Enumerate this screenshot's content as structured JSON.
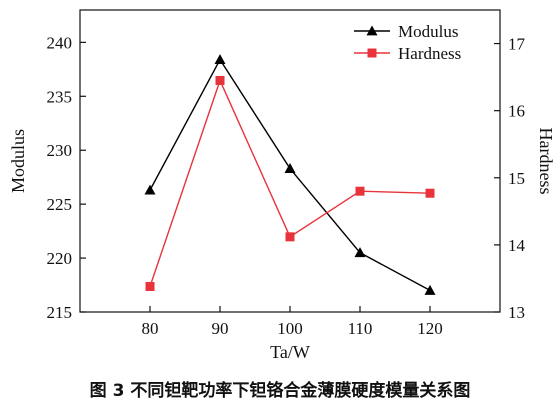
{
  "caption": "图 3  不同钽靶功率下钽铬合金薄膜硬度模量关系图",
  "chart_data": {
    "type": "line",
    "x": [
      80,
      90,
      100,
      110,
      120
    ],
    "xlabel": "Ta/W",
    "ylabel_left": "Modulus",
    "ylabel_right": "Hardness",
    "xlim": [
      70,
      130
    ],
    "ylim_left": [
      215,
      243
    ],
    "ylim_right": [
      13,
      17.5
    ],
    "x_ticks": [
      "80",
      "90",
      "100",
      "110",
      "120"
    ],
    "y_left_ticks": [
      "215",
      "220",
      "225",
      "230",
      "235",
      "240"
    ],
    "y_right_ticks": [
      "13",
      "14",
      "15",
      "16",
      "17"
    ],
    "legend_position": "top-right",
    "grid": false,
    "series": [
      {
        "name": "Modulus",
        "axis": "left",
        "marker": "triangle",
        "color": "#000000",
        "values": [
          226.3,
          238.4,
          228.3,
          220.5,
          217.0
        ]
      },
      {
        "name": "Hardness",
        "axis": "right",
        "marker": "square",
        "color": "#e8333b",
        "values": [
          13.38,
          16.45,
          14.12,
          14.8,
          14.77
        ]
      }
    ]
  }
}
